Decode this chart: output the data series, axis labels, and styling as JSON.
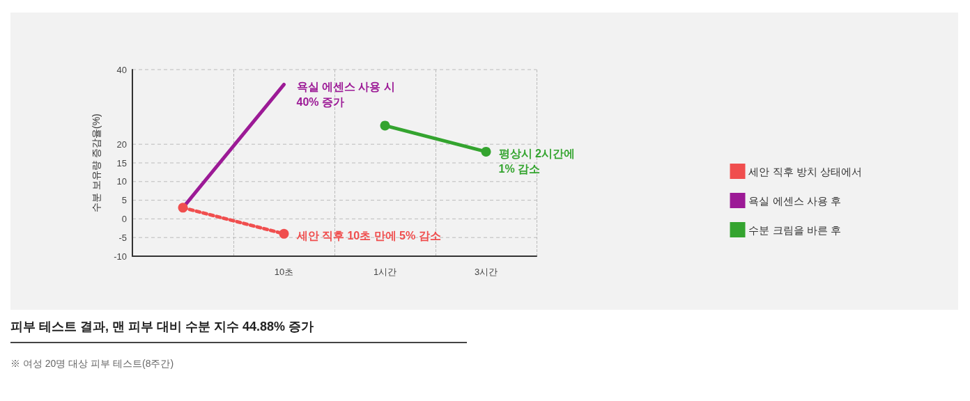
{
  "chart_data": {
    "type": "line",
    "ylabel": "수분 보유량 증감율(%)",
    "categories": [
      null,
      "10초",
      "1시간",
      "3시간"
    ],
    "series": [
      {
        "name": "세안 직후 방치 상태에서",
        "color": "#f04e4e",
        "values": [
          3,
          -4,
          null,
          null
        ],
        "line_style": "dotted",
        "marker": "circle"
      },
      {
        "name": "욕실 에센스 사용 후",
        "color": "#9c1a96",
        "values": [
          3,
          36,
          null,
          null
        ],
        "line_style": "solid",
        "marker": "none"
      },
      {
        "name": "수분 크림을 바른 후",
        "color": "#34a42f",
        "values": [
          null,
          null,
          25,
          18
        ],
        "line_style": "solid",
        "marker": "circle"
      }
    ],
    "ylim": [
      -10,
      40
    ],
    "yticks": [
      -10,
      -5,
      0,
      5,
      10,
      15,
      20,
      40
    ],
    "grid": true,
    "legend": "right",
    "annotations": [
      {
        "text": "욕실 에센스 사용 시\n40% 증가",
        "x": "10초",
        "y": 36
      },
      {
        "text": "평상시 2시간에\n1% 감소",
        "x": "3시간",
        "y": 18
      },
      {
        "text": "세안 직후 10초 만에 5% 감소",
        "x": "10초",
        "y": -4
      },
      "피부 테스트 결과, 맨 피부 대비 수분 지수 44.88% 증가",
      "※ 여성 20명 대상 피부 테스트(8주간)"
    ]
  }
}
